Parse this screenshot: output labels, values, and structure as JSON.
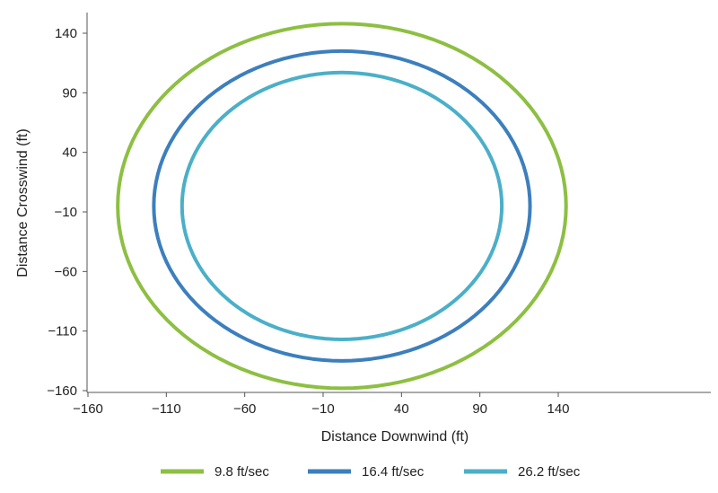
{
  "chart_data": {
    "type": "line",
    "title": "",
    "xlabel": "Distance Downwind (ft)",
    "ylabel": "Distance Crosswind (ft)",
    "xlim": [
      -160,
      160
    ],
    "ylim": [
      -160,
      160
    ],
    "x_ticks": [
      "−160",
      "−110",
      "−60",
      "−10",
      "40",
      "90",
      "140"
    ],
    "y_ticks": [
      "140",
      "90",
      "40",
      "−10",
      "−60",
      "−110",
      "−160"
    ],
    "grid": false,
    "legend_position": "bottom",
    "series": [
      {
        "name": "9.8 ft/sec",
        "color": "#8DBF42",
        "center": [
          2,
          -5
        ],
        "semi_axis_x": 143,
        "semi_axis_y": 153
      },
      {
        "name": "16.4 ft/sec",
        "color": "#3C7FBD",
        "center": [
          2,
          -5
        ],
        "semi_axis_x": 120,
        "semi_axis_y": 130
      },
      {
        "name": "26.2 ft/sec",
        "color": "#4BAFC8",
        "center": [
          2,
          -5
        ],
        "semi_axis_x": 102,
        "semi_axis_y": 112
      }
    ]
  }
}
